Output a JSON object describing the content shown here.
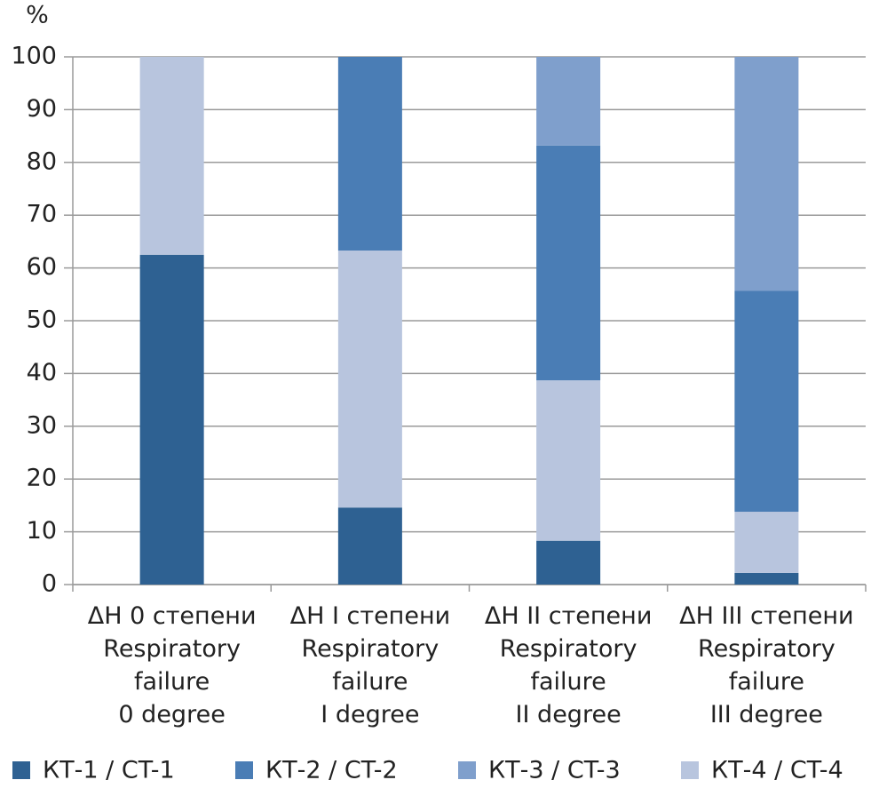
{
  "chart_data": {
    "type": "stacked_bar",
    "y_label": "%",
    "categories": [
      [
        "ΔН 0 степени",
        "Respiratory",
        "failure",
        "0 degree"
      ],
      [
        "ΔН I степени",
        "Respiratory",
        "failure",
        "I degree"
      ],
      [
        "ΔН II степени",
        "Respiratory",
        "failure",
        "II degree"
      ],
      [
        "ΔН III степени",
        "Respiratory",
        "failure",
        "III degree"
      ]
    ],
    "series": [
      {
        "name": "КТ-1 / CT-1",
        "color": "#2e6192",
        "values": [
          62.5,
          14.6,
          8.3,
          2.2
        ]
      },
      {
        "name": "КТ-2 / CT-2",
        "color": "#4a7db5",
        "values": [
          0,
          36.7,
          44.5,
          41.9
        ]
      },
      {
        "name": "КТ-3 / CT-3",
        "color": "#7f9fcc",
        "values": [
          0,
          0,
          16.8,
          44.3
        ]
      },
      {
        "name": "КТ-4 / CT-4",
        "color": "#b8c5de",
        "values": [
          37.5,
          48.7,
          30.4,
          11.6
        ]
      }
    ],
    "stack_order": [
      0,
      3,
      1,
      2
    ],
    "ylim": [
      0,
      100
    ],
    "yticks": [
      0,
      10,
      20,
      30,
      40,
      50,
      60,
      70,
      80,
      90,
      100
    ],
    "grid": true
  }
}
